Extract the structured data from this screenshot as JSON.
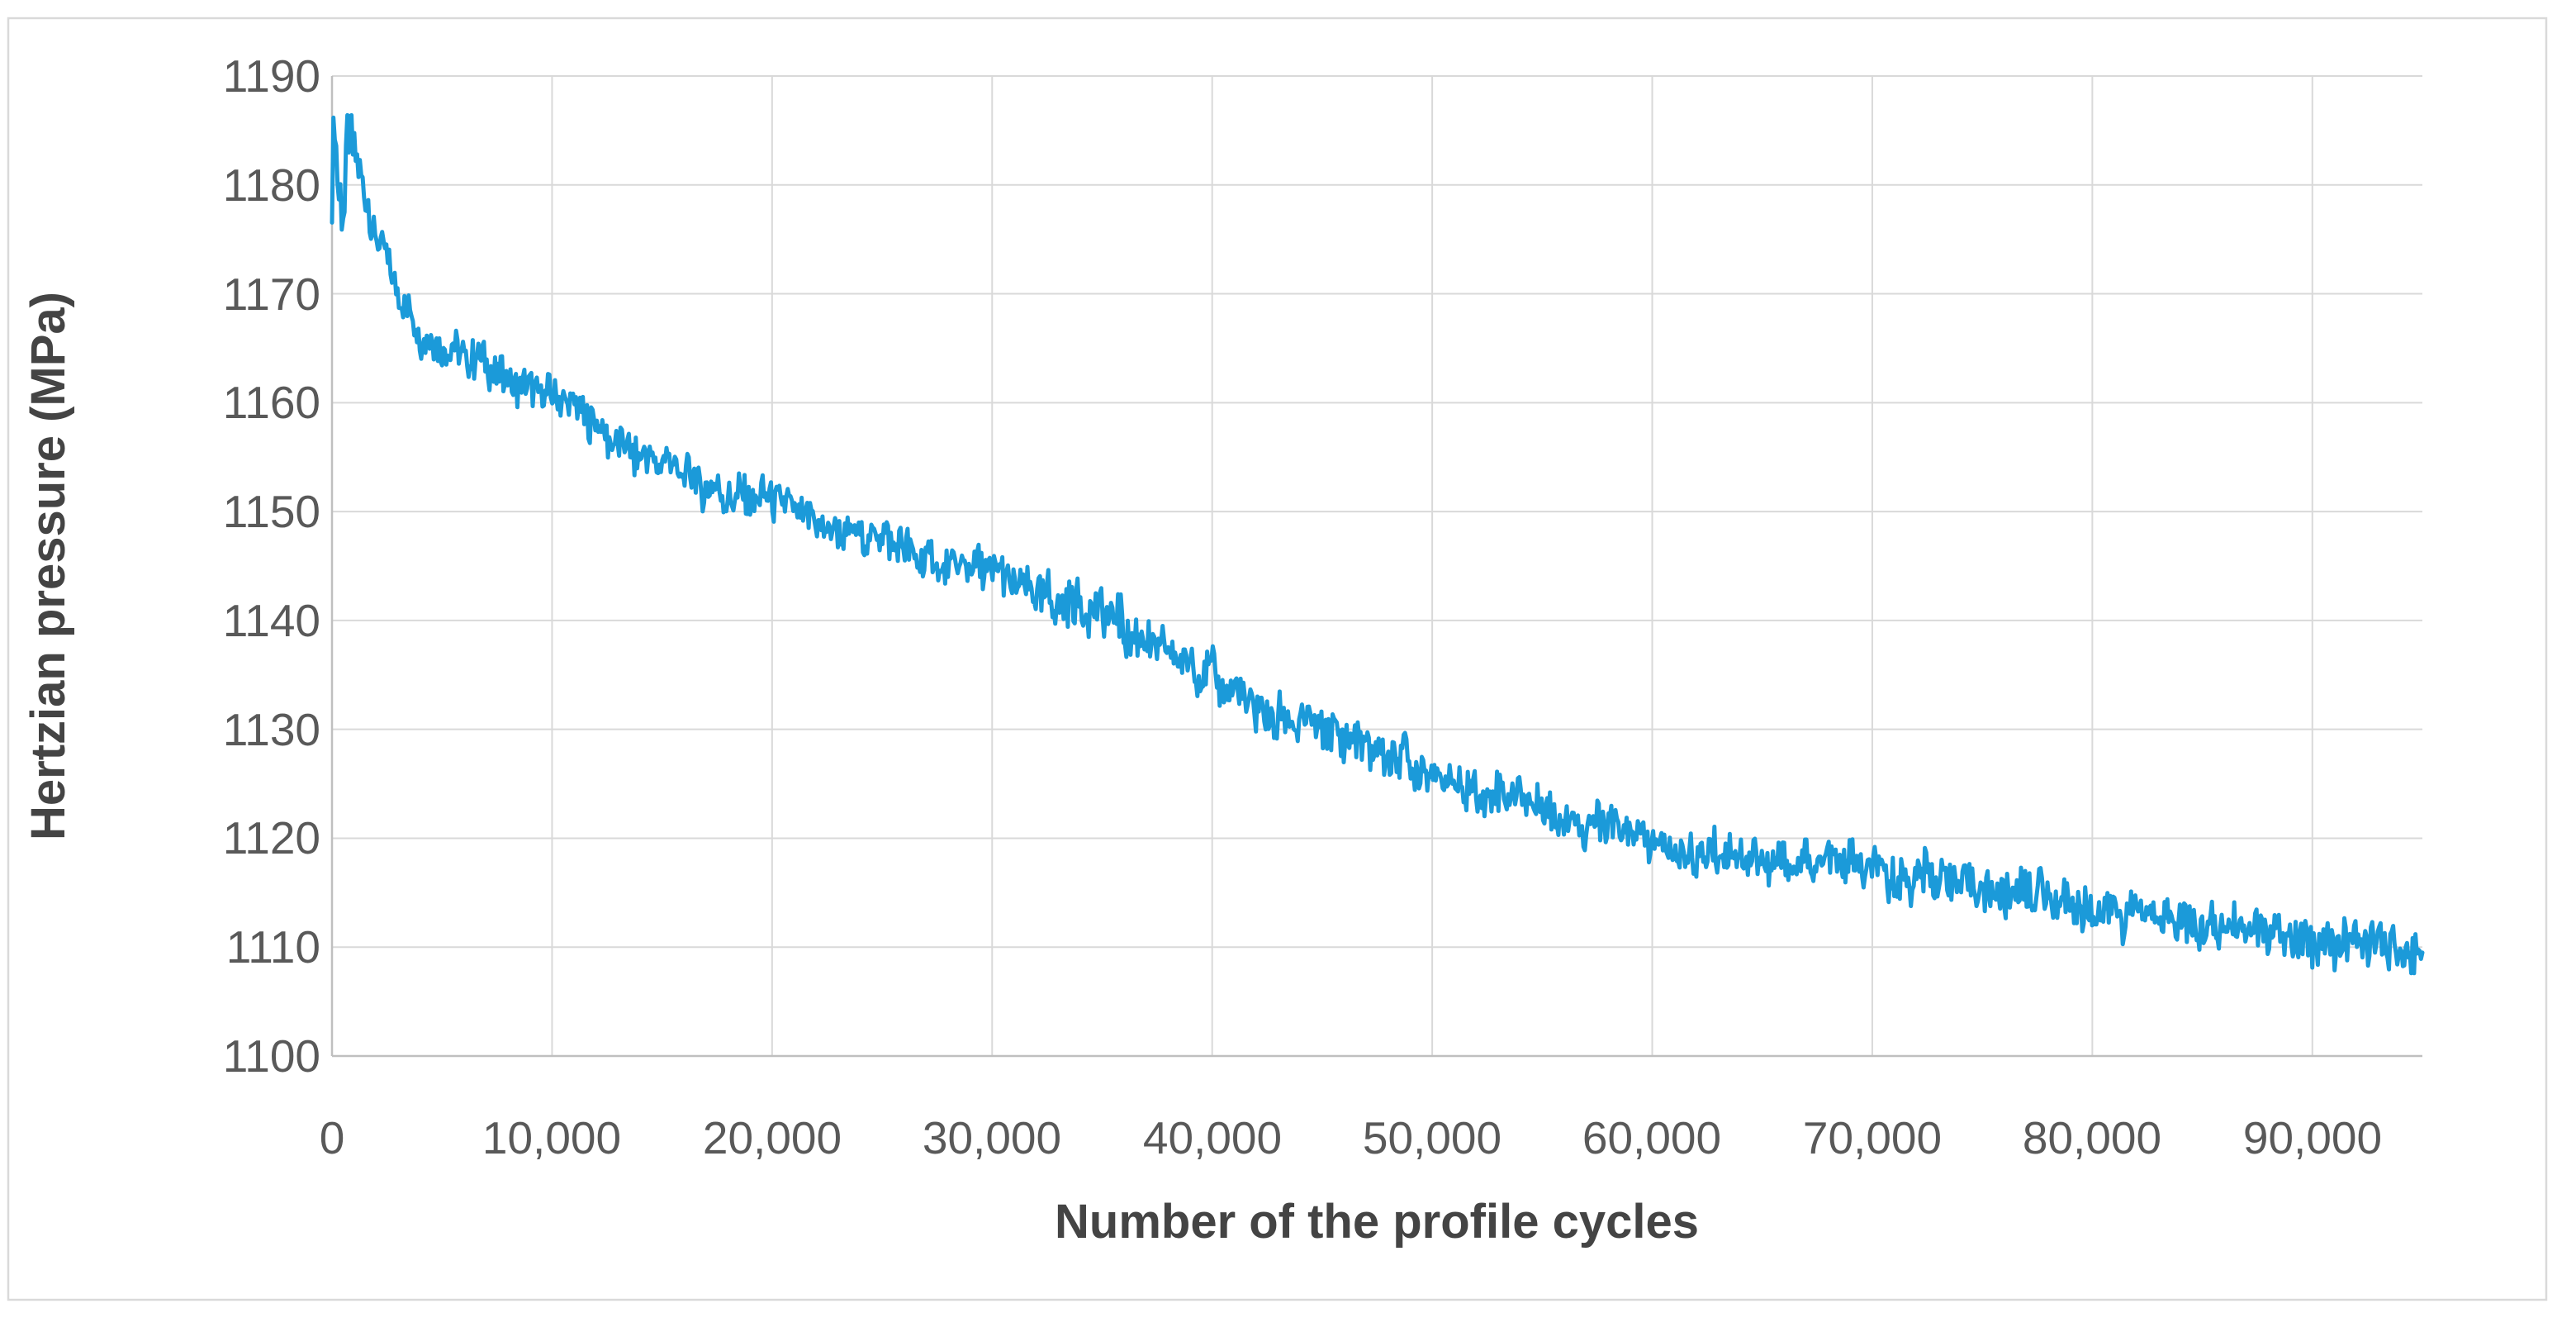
{
  "chart": {
    "background": "#FFFFFF",
    "border_color": "#D9D9D9",
    "plot": {
      "gridline_color": "#D9D9D9",
      "axis_line_color": "#BFBFBF",
      "tick_label_color": "#595959",
      "axis_title_color": "#444444"
    }
  },
  "chart_data": {
    "type": "line",
    "title": "",
    "xlabel": "Number of the profile cycles",
    "ylabel": "Hertzian pressure (MPa)",
    "legend": "none",
    "grid": {
      "horizontal": true,
      "vertical": true
    },
    "x_axis": {
      "min": 0,
      "max": 95000,
      "major_unit": 10000,
      "tick_values": [
        0,
        10000,
        20000,
        30000,
        40000,
        50000,
        60000,
        70000,
        80000,
        90000
      ],
      "tick_labels": [
        "0",
        "10,000",
        "20,000",
        "30,000",
        "40,000",
        "50,000",
        "60,000",
        "70,000",
        "80,000",
        "90,000"
      ]
    },
    "y_axis": {
      "min": 1100,
      "max": 1190,
      "major_unit": 10,
      "tick_values": [
        1100,
        1110,
        1120,
        1130,
        1140,
        1150,
        1160,
        1170,
        1180,
        1190
      ],
      "tick_labels": [
        "1100",
        "1110",
        "1120",
        "1130",
        "1140",
        "1150",
        "1160",
        "1170",
        "1180",
        "1190"
      ]
    },
    "series": [
      {
        "name": "Hertzian pressure",
        "color": "#1B9AD9",
        "stroke_width": 5,
        "samples": 1500,
        "noise_band_mpa": [
          [
            900,
            3.6
          ],
          [
            2500,
            2.2
          ],
          [
            32000,
            2.0
          ],
          [
            50000,
            2.5
          ],
          [
            70000,
            2.2
          ],
          [
            95001,
            2.3
          ]
        ],
        "trend_points": [
          [
            0,
            1180.5
          ],
          [
            120,
            1185.3
          ],
          [
            260,
            1179.0
          ],
          [
            420,
            1176.8
          ],
          [
            560,
            1177.5
          ],
          [
            700,
            1185.3
          ],
          [
            900,
            1184.0
          ],
          [
            1200,
            1181.0
          ],
          [
            1600,
            1178.0
          ],
          [
            2000,
            1175.3
          ],
          [
            2600,
            1172.3
          ],
          [
            3200,
            1169.6
          ],
          [
            4000,
            1166.8
          ],
          [
            4800,
            1165.1
          ],
          [
            6000,
            1164.2
          ],
          [
            7000,
            1163.4
          ],
          [
            8000,
            1162.5
          ],
          [
            9000,
            1161.5
          ],
          [
            10000,
            1160.4
          ],
          [
            11500,
            1158.7
          ],
          [
            13000,
            1156.6
          ],
          [
            15000,
            1154.2
          ],
          [
            17000,
            1152.3
          ],
          [
            18500,
            1151.5
          ],
          [
            20000,
            1150.7
          ],
          [
            22000,
            1149.2
          ],
          [
            24000,
            1147.9
          ],
          [
            26000,
            1146.5
          ],
          [
            28000,
            1145.3
          ],
          [
            30000,
            1144.2
          ],
          [
            32000,
            1142.7
          ],
          [
            34000,
            1141.2
          ],
          [
            36000,
            1139.4
          ],
          [
            37500,
            1137.8
          ],
          [
            39000,
            1135.9
          ],
          [
            40000,
            1134.6
          ],
          [
            41500,
            1132.8
          ],
          [
            43000,
            1131.0
          ],
          [
            44500,
            1130.0
          ],
          [
            46000,
            1129.4
          ],
          [
            47500,
            1128.2
          ],
          [
            49000,
            1126.9
          ],
          [
            50000,
            1125.9
          ],
          [
            52000,
            1124.5
          ],
          [
            54000,
            1123.4
          ],
          [
            56000,
            1122.3
          ],
          [
            58000,
            1120.9
          ],
          [
            60000,
            1119.5
          ],
          [
            62000,
            1118.7
          ],
          [
            64000,
            1118.2
          ],
          [
            66000,
            1117.8
          ],
          [
            68000,
            1117.5
          ],
          [
            70000,
            1117.1
          ],
          [
            71500,
            1116.5
          ],
          [
            73000,
            1116.1
          ],
          [
            74500,
            1115.9
          ],
          [
            76000,
            1115.4
          ],
          [
            77500,
            1114.6
          ],
          [
            79000,
            1113.9
          ],
          [
            80500,
            1113.4
          ],
          [
            82000,
            1113.1
          ],
          [
            83500,
            1112.8
          ],
          [
            85000,
            1112.2
          ],
          [
            86500,
            1111.7
          ],
          [
            88000,
            1111.2
          ],
          [
            89500,
            1110.8
          ],
          [
            91000,
            1110.4
          ],
          [
            92500,
            1110.1
          ],
          [
            94000,
            1109.8
          ],
          [
            95000,
            1109.6
          ]
        ]
      }
    ]
  }
}
